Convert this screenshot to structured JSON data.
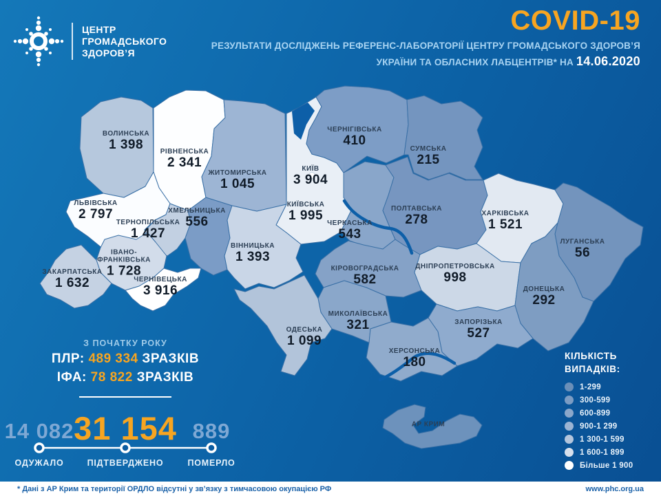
{
  "header": {
    "logo_lines": [
      "ЦЕНТР",
      "ГРОМАДСЬКОГО",
      "ЗДОРОВ’Я"
    ],
    "title": "COVID-19",
    "subtitle_line1": "РЕЗУЛЬТАТИ ДОСЛІДЖЕНЬ РЕФЕРЕНС-ЛАБОРАТОРІЇ ЦЕНТРУ ГРОМАДСЬКОГО ЗДОРОВ’Я",
    "subtitle_line2": "УКРАЇНИ ТА ОБЛАСНИХ ЛАБЦЕНТРІВ* НА",
    "date": "14.06.2020"
  },
  "map": {
    "regions": [
      {
        "id": "volyn",
        "name": "ВОЛИНСЬКА",
        "value": "1 398",
        "color": "#b6c8dd"
      },
      {
        "id": "rivne",
        "name": "РІВНЕНСЬКА",
        "value": "2 341",
        "color": "#fdfeff"
      },
      {
        "id": "zhytomyr",
        "name": "ЖИТОМИРСЬКА",
        "value": "1 045",
        "color": "#9db5d4"
      },
      {
        "id": "kyiv_obl",
        "name": "КИЇВСЬКА",
        "value": "1 995",
        "color": "#e9eff6"
      },
      {
        "id": "kyiv_city",
        "name": "КИЇВ",
        "value": "3 904",
        "color": "#ffffff"
      },
      {
        "id": "chernihiv",
        "name": "ЧЕРНІГІВСЬКА",
        "value": "410",
        "color": "#7d9dc6"
      },
      {
        "id": "sumy",
        "name": "СУМСЬКА",
        "value": "215",
        "color": "#7495bf"
      },
      {
        "id": "lviv",
        "name": "ЛЬВІВСЬКА",
        "value": "2 797",
        "color": "#fbfdff"
      },
      {
        "id": "ternopil",
        "name": "ТЕРНОПІЛЬСЬКА",
        "value": "1 427",
        "color": "#c2d0e2"
      },
      {
        "id": "khmelnytsky",
        "name": "ХМЕЛЬНИЦЬКА",
        "value": "556",
        "color": "#7b9cc6"
      },
      {
        "id": "vinnytsia",
        "name": "ВІННИЦЬКА",
        "value": "1 393",
        "color": "#c9d6e7"
      },
      {
        "id": "ivanofr",
        "name": "ІВАНО-ФРАНКІВСЬКА",
        "value": "1 728",
        "color": "#d2dcea"
      },
      {
        "id": "zakarpattia",
        "name": "ЗАКАРПАТСЬКА",
        "value": "1 632",
        "color": "#c5d2e3"
      },
      {
        "id": "chernivtsi",
        "name": "ЧЕРНІВЕЦЬКА",
        "value": "3 916",
        "color": "#ffffff"
      },
      {
        "id": "cherkasy",
        "name": "ЧЕРКАСЬКА",
        "value": "543",
        "color": "#89a6ca"
      },
      {
        "id": "poltava",
        "name": "ПОЛТАВСЬКА",
        "value": "278",
        "color": "#7796c0"
      },
      {
        "id": "kharkiv",
        "name": "ХАРКІВСЬКА",
        "value": "1 521",
        "color": "#e2e9f2"
      },
      {
        "id": "luhansk",
        "name": "ЛУГАНСЬКА",
        "value": "56",
        "color": "#7394bd"
      },
      {
        "id": "kirovohrad",
        "name": "КІРОВОГРАДСЬКА",
        "value": "582",
        "color": "#85a2c7"
      },
      {
        "id": "dnipro",
        "name": "ДНІПРОПЕТРОВСЬКА",
        "value": "998",
        "color": "#ccd8e7"
      },
      {
        "id": "donetsk",
        "name": "ДОНЕЦЬКА",
        "value": "292",
        "color": "#7e9dc2"
      },
      {
        "id": "mykolaiv",
        "name": "МИКОЛАЇВСЬКА",
        "value": "321",
        "color": "#8aa7ca"
      },
      {
        "id": "odesa",
        "name": "ОДЕСЬКА",
        "value": "1 099",
        "color": "#b2c4da"
      },
      {
        "id": "zaporizhzhia",
        "name": "ЗАПОРІЗЬКА",
        "value": "527",
        "color": "#8fabce"
      },
      {
        "id": "kherson",
        "name": "ХЕРСОНСЬКА",
        "value": "180",
        "color": "#90abcc"
      },
      {
        "id": "crimea",
        "name": "АР КРИМ",
        "value": null,
        "color": "#6d92bc"
      }
    ]
  },
  "stats": {
    "since_label": "З ПОЧАТКУ РОКУ",
    "pcr_label": "ПЛР:",
    "pcr_value": "489 334",
    "pcr_word": "ЗРАЗКІВ",
    "ifa_label": "ІФА:",
    "ifa_value": "78 822",
    "ifa_word": "ЗРАЗКІВ",
    "recovered": {
      "value": "14 082",
      "label": "ОДУЖАЛО"
    },
    "confirmed": {
      "value": "31 154",
      "label": "ПІДТВЕРДЖЕНО"
    },
    "died": {
      "value": "889",
      "label": "ПОМЕРЛО"
    }
  },
  "legend": {
    "title_line1": "КІЛЬКІСТЬ",
    "title_line2": "ВИПАДКІВ:",
    "items": [
      {
        "label": "1-299",
        "color": "#6b8fb8"
      },
      {
        "label": "300-599",
        "color": "#7c9cc3"
      },
      {
        "label": "600-899",
        "color": "#8ba7ca"
      },
      {
        "label": "900-1 299",
        "color": "#9cb4d3"
      },
      {
        "label": "1 300-1 599",
        "color": "#b4c5dc"
      },
      {
        "label": "1 600-1 899",
        "color": "#d8e0ec"
      },
      {
        "label": "Більше 1 900",
        "color": "#ffffff"
      }
    ]
  },
  "footer": {
    "note": "* Дані з АР Крим та території ОРДЛО відсутні у зв’язку з тимчасовою окупацією РФ",
    "url": "www.phc.org.ua"
  },
  "colors": {
    "accent": "#f7a521",
    "background_top": "#1478b9",
    "background_bottom": "#094f93",
    "subtitle_text": "#a9d4f2",
    "muted_stat": "#7ea8d4",
    "region_border": "#3a70a6",
    "water": "#0d5fa8"
  }
}
